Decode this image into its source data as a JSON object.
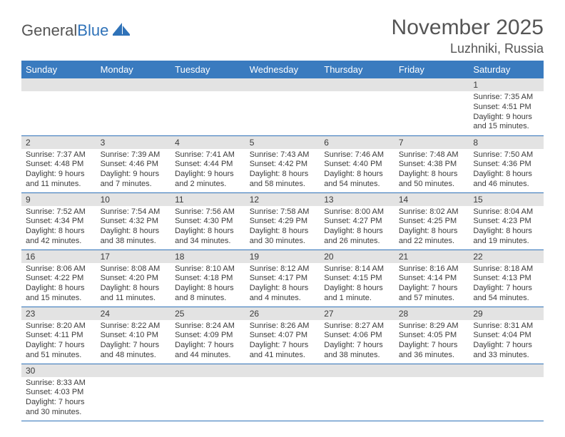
{
  "logo": {
    "text1": "General",
    "text2": "Blue"
  },
  "title": "November 2025",
  "location": "Luzhniki, Russia",
  "colors": {
    "header_bg": "#3a7bbf",
    "accent": "#2f72b8",
    "day_header_bg": "#e3e3e3",
    "text": "#3b3b3b",
    "title_text": "#555555"
  },
  "weekdays": [
    "Sunday",
    "Monday",
    "Tuesday",
    "Wednesday",
    "Thursday",
    "Friday",
    "Saturday"
  ],
  "weeks": [
    [
      null,
      null,
      null,
      null,
      null,
      null,
      {
        "n": "1",
        "sr": "Sunrise: 7:35 AM",
        "ss": "Sunset: 4:51 PM",
        "dl": "Daylight: 9 hours and 15 minutes."
      }
    ],
    [
      {
        "n": "2",
        "sr": "Sunrise: 7:37 AM",
        "ss": "Sunset: 4:48 PM",
        "dl": "Daylight: 9 hours and 11 minutes."
      },
      {
        "n": "3",
        "sr": "Sunrise: 7:39 AM",
        "ss": "Sunset: 4:46 PM",
        "dl": "Daylight: 9 hours and 7 minutes."
      },
      {
        "n": "4",
        "sr": "Sunrise: 7:41 AM",
        "ss": "Sunset: 4:44 PM",
        "dl": "Daylight: 9 hours and 2 minutes."
      },
      {
        "n": "5",
        "sr": "Sunrise: 7:43 AM",
        "ss": "Sunset: 4:42 PM",
        "dl": "Daylight: 8 hours and 58 minutes."
      },
      {
        "n": "6",
        "sr": "Sunrise: 7:46 AM",
        "ss": "Sunset: 4:40 PM",
        "dl": "Daylight: 8 hours and 54 minutes."
      },
      {
        "n": "7",
        "sr": "Sunrise: 7:48 AM",
        "ss": "Sunset: 4:38 PM",
        "dl": "Daylight: 8 hours and 50 minutes."
      },
      {
        "n": "8",
        "sr": "Sunrise: 7:50 AM",
        "ss": "Sunset: 4:36 PM",
        "dl": "Daylight: 8 hours and 46 minutes."
      }
    ],
    [
      {
        "n": "9",
        "sr": "Sunrise: 7:52 AM",
        "ss": "Sunset: 4:34 PM",
        "dl": "Daylight: 8 hours and 42 minutes."
      },
      {
        "n": "10",
        "sr": "Sunrise: 7:54 AM",
        "ss": "Sunset: 4:32 PM",
        "dl": "Daylight: 8 hours and 38 minutes."
      },
      {
        "n": "11",
        "sr": "Sunrise: 7:56 AM",
        "ss": "Sunset: 4:30 PM",
        "dl": "Daylight: 8 hours and 34 minutes."
      },
      {
        "n": "12",
        "sr": "Sunrise: 7:58 AM",
        "ss": "Sunset: 4:29 PM",
        "dl": "Daylight: 8 hours and 30 minutes."
      },
      {
        "n": "13",
        "sr": "Sunrise: 8:00 AM",
        "ss": "Sunset: 4:27 PM",
        "dl": "Daylight: 8 hours and 26 minutes."
      },
      {
        "n": "14",
        "sr": "Sunrise: 8:02 AM",
        "ss": "Sunset: 4:25 PM",
        "dl": "Daylight: 8 hours and 22 minutes."
      },
      {
        "n": "15",
        "sr": "Sunrise: 8:04 AM",
        "ss": "Sunset: 4:23 PM",
        "dl": "Daylight: 8 hours and 19 minutes."
      }
    ],
    [
      {
        "n": "16",
        "sr": "Sunrise: 8:06 AM",
        "ss": "Sunset: 4:22 PM",
        "dl": "Daylight: 8 hours and 15 minutes."
      },
      {
        "n": "17",
        "sr": "Sunrise: 8:08 AM",
        "ss": "Sunset: 4:20 PM",
        "dl": "Daylight: 8 hours and 11 minutes."
      },
      {
        "n": "18",
        "sr": "Sunrise: 8:10 AM",
        "ss": "Sunset: 4:18 PM",
        "dl": "Daylight: 8 hours and 8 minutes."
      },
      {
        "n": "19",
        "sr": "Sunrise: 8:12 AM",
        "ss": "Sunset: 4:17 PM",
        "dl": "Daylight: 8 hours and 4 minutes."
      },
      {
        "n": "20",
        "sr": "Sunrise: 8:14 AM",
        "ss": "Sunset: 4:15 PM",
        "dl": "Daylight: 8 hours and 1 minute."
      },
      {
        "n": "21",
        "sr": "Sunrise: 8:16 AM",
        "ss": "Sunset: 4:14 PM",
        "dl": "Daylight: 7 hours and 57 minutes."
      },
      {
        "n": "22",
        "sr": "Sunrise: 8:18 AM",
        "ss": "Sunset: 4:13 PM",
        "dl": "Daylight: 7 hours and 54 minutes."
      }
    ],
    [
      {
        "n": "23",
        "sr": "Sunrise: 8:20 AM",
        "ss": "Sunset: 4:11 PM",
        "dl": "Daylight: 7 hours and 51 minutes."
      },
      {
        "n": "24",
        "sr": "Sunrise: 8:22 AM",
        "ss": "Sunset: 4:10 PM",
        "dl": "Daylight: 7 hours and 48 minutes."
      },
      {
        "n": "25",
        "sr": "Sunrise: 8:24 AM",
        "ss": "Sunset: 4:09 PM",
        "dl": "Daylight: 7 hours and 44 minutes."
      },
      {
        "n": "26",
        "sr": "Sunrise: 8:26 AM",
        "ss": "Sunset: 4:07 PM",
        "dl": "Daylight: 7 hours and 41 minutes."
      },
      {
        "n": "27",
        "sr": "Sunrise: 8:27 AM",
        "ss": "Sunset: 4:06 PM",
        "dl": "Daylight: 7 hours and 38 minutes."
      },
      {
        "n": "28",
        "sr": "Sunrise: 8:29 AM",
        "ss": "Sunset: 4:05 PM",
        "dl": "Daylight: 7 hours and 36 minutes."
      },
      {
        "n": "29",
        "sr": "Sunrise: 8:31 AM",
        "ss": "Sunset: 4:04 PM",
        "dl": "Daylight: 7 hours and 33 minutes."
      }
    ],
    [
      {
        "n": "30",
        "sr": "Sunrise: 8:33 AM",
        "ss": "Sunset: 4:03 PM",
        "dl": "Daylight: 7 hours and 30 minutes."
      },
      null,
      null,
      null,
      null,
      null,
      null
    ]
  ]
}
